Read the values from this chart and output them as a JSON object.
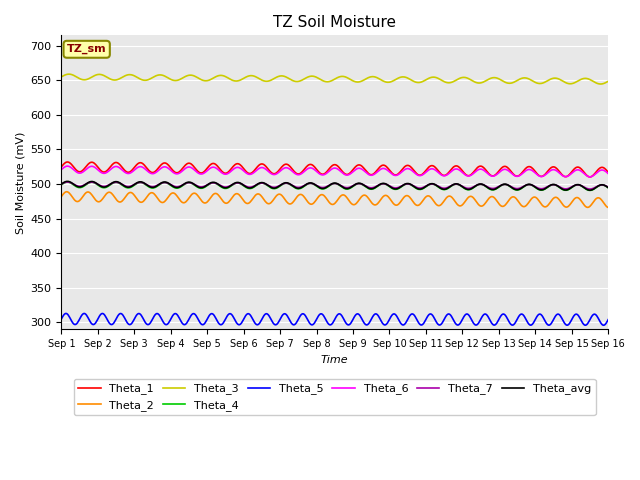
{
  "title": "TZ Soil Moisture",
  "xlabel": "Time",
  "ylabel": "Soil Moisture (mV)",
  "ylim": [
    290,
    715
  ],
  "xlim": [
    0,
    360
  ],
  "bg_color": "#e8e8e8",
  "fig_color": "#ffffff",
  "series": [
    {
      "name": "Theta_1",
      "color": "#ff0000",
      "base": 525,
      "amplitude": 7,
      "trend": -0.022,
      "period": 16
    },
    {
      "name": "Theta_2",
      "color": "#ff8c00",
      "base": 482,
      "amplitude": 7,
      "trend": -0.025,
      "period": 14
    },
    {
      "name": "Theta_3",
      "color": "#cccc00",
      "base": 655,
      "amplitude": 4,
      "trend": -0.018,
      "period": 20
    },
    {
      "name": "Theta_4",
      "color": "#00cc00",
      "base": 499,
      "amplitude": 4,
      "trend": -0.012,
      "period": 16
    },
    {
      "name": "Theta_5",
      "color": "#0000ff",
      "base": 305,
      "amplitude": 8,
      "trend": -0.003,
      "period": 12
    },
    {
      "name": "Theta_6",
      "color": "#ff00ff",
      "base": 521,
      "amplitude": 5,
      "trend": -0.016,
      "period": 16
    },
    {
      "name": "Theta_7",
      "color": "#aa00aa",
      "base": 500,
      "amplitude": 3,
      "trend": -0.012,
      "period": 16
    },
    {
      "name": "Theta_avg",
      "color": "#000000",
      "base": 500,
      "amplitude": 4,
      "trend": -0.014,
      "period": 16
    }
  ],
  "xtick_labels": [
    "Sep 1",
    "Sep 2",
    "Sep 3",
    "Sep 4",
    "Sep 5",
    "Sep 6",
    "Sep 7",
    "Sep 8",
    "Sep 9",
    "Sep 10",
    "Sep 11",
    "Sep 12",
    "Sep 13",
    "Sep 14",
    "Sep 15",
    "Sep 16"
  ],
  "xtick_positions": [
    0,
    24,
    48,
    72,
    96,
    120,
    144,
    168,
    192,
    216,
    240,
    264,
    288,
    312,
    336,
    360
  ],
  "yticks": [
    300,
    350,
    400,
    450,
    500,
    550,
    600,
    650,
    700
  ],
  "legend_label": "TZ_sm",
  "legend_bg": "#ffffaa",
  "legend_edge": "#888800",
  "legend_text_color": "#880000"
}
